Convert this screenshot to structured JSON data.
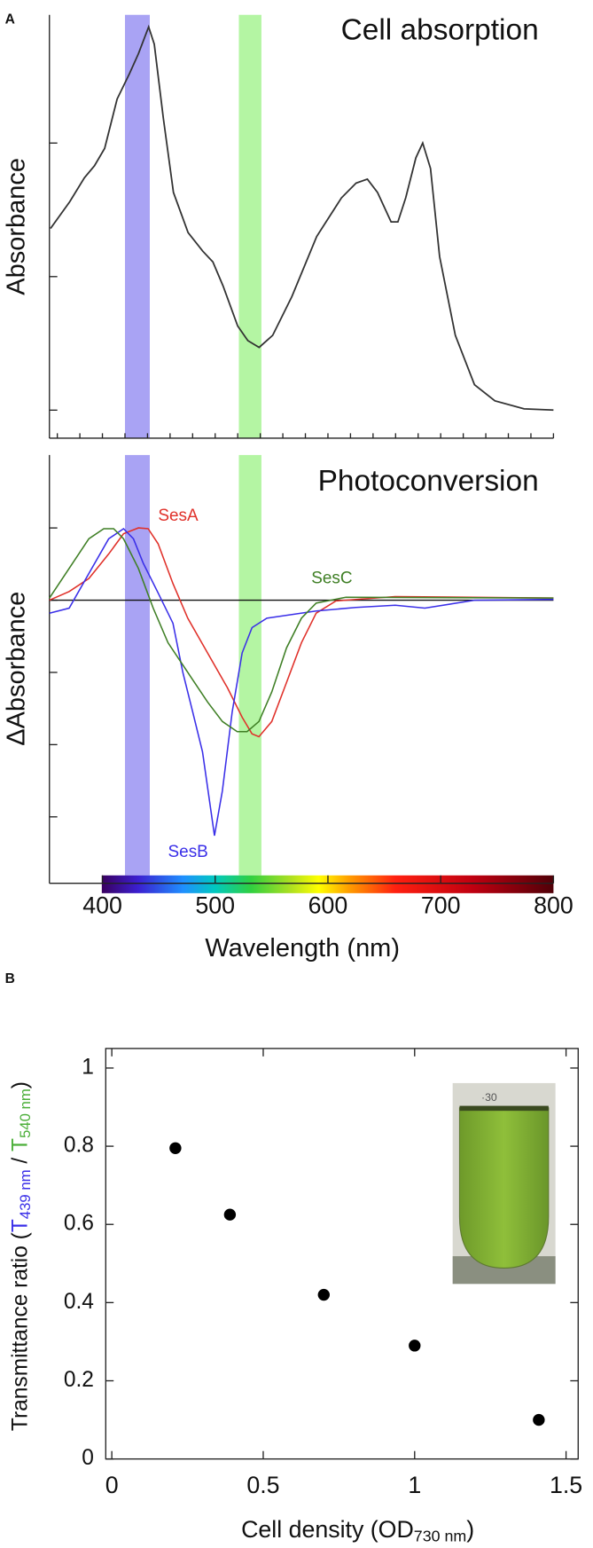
{
  "chart_data": [
    {
      "type": "line",
      "panel_label": "A",
      "title": "Cell absorption",
      "y_label": "Absorbance",
      "color": "#333333",
      "xlim": [
        353,
        800
      ],
      "ylim": [
        -0.21,
        2.96
      ],
      "xticks": [
        360,
        380,
        400,
        420,
        440,
        460,
        480,
        500,
        520,
        540,
        560,
        580,
        600,
        620,
        640,
        660,
        680,
        700,
        720,
        740,
        760,
        780,
        800
      ],
      "yticks": [
        0,
        1,
        2
      ],
      "xtick_labels": false,
      "ytick_labels": false,
      "bands": [
        {
          "range": [
            420,
            442
          ],
          "color": "#a9a3f4"
        },
        {
          "range": [
            521,
            541
          ],
          "color": "#b4f5a3"
        }
      ],
      "x": [
        354,
        371,
        384,
        393,
        402,
        413,
        424,
        432,
        441,
        446,
        454,
        463,
        476,
        489,
        498,
        507,
        520,
        529,
        539,
        551,
        568,
        590,
        612,
        625,
        635,
        644,
        656,
        662,
        669,
        678,
        684,
        691,
        699,
        713,
        730,
        748,
        774,
        800
      ],
      "values": [
        1.36,
        1.56,
        1.74,
        1.83,
        1.96,
        2.33,
        2.52,
        2.67,
        2.87,
        2.74,
        2.19,
        1.63,
        1.33,
        1.19,
        1.11,
        0.93,
        0.63,
        0.52,
        0.47,
        0.56,
        0.85,
        1.3,
        1.59,
        1.7,
        1.73,
        1.63,
        1.41,
        1.41,
        1.59,
        1.89,
        2.0,
        1.81,
        1.15,
        0.56,
        0.19,
        0.07,
        0.01,
        0
      ]
    },
    {
      "type": "line",
      "title": "Photoconversion",
      "y_label": "ΔAbsorbance",
      "x_label": "Wavelength (nm)",
      "xlim": [
        353,
        800
      ],
      "ylim": [
        -3.92,
        2.01
      ],
      "xticks": [
        400,
        500,
        600,
        700,
        800
      ],
      "yticks": [
        -3,
        -2,
        -1,
        0,
        1
      ],
      "xtick_labels": true,
      "ytick_labels": false,
      "reference_line": 0,
      "bands": [
        {
          "range": [
            420,
            442
          ],
          "color": "#a9a3f4"
        },
        {
          "range": [
            521,
            541
          ],
          "color": "#b4f5a3"
        }
      ],
      "series": [
        {
          "name": "SesA",
          "color": "#e0312a",
          "x": [
            353,
            370.5,
            388,
            405.6,
            418.7,
            431.9,
            440.6,
            449.4,
            462.6,
            475.7,
            493.2,
            510.8,
            523.9,
            532.7,
            538.8,
            550.2,
            563.3,
            576.5,
            589.6,
            607.2,
            659.7,
            800
          ],
          "values": [
            0,
            0.12,
            0.3,
            0.64,
            0.92,
            1.0,
            0.99,
            0.78,
            0.23,
            -0.25,
            -0.73,
            -1.21,
            -1.62,
            -1.85,
            -1.89,
            -1.68,
            -1.14,
            -0.59,
            -0.18,
            -0.01,
            0.05,
            0.03
          ]
        },
        {
          "name": "SesB",
          "color": "#3a2fe8",
          "x": [
            353,
            370.5,
            388,
            405.6,
            418.7,
            427.5,
            436.3,
            449.4,
            462.6,
            471.3,
            480.1,
            488.8,
            495,
            499.4,
            506.4,
            515.1,
            523.9,
            532.7,
            545.8,
            563.3,
            589.6,
            624.7,
            659.7,
            686,
            729.9,
            800
          ],
          "values": [
            -0.18,
            -0.11,
            0.37,
            0.85,
            0.99,
            0.85,
            0.51,
            0.1,
            -0.32,
            -1.0,
            -1.55,
            -2.1,
            -2.78,
            -3.26,
            -2.64,
            -1.55,
            -0.73,
            -0.38,
            -0.25,
            -0.21,
            -0.15,
            -0.1,
            -0.07,
            -0.11,
            0,
            0.01
          ]
        },
        {
          "name": "SesC",
          "color": "#3f7f25",
          "x": [
            353,
            370.5,
            388,
            401.2,
            410,
            418.7,
            431.9,
            445,
            458.2,
            475.7,
            493.2,
            506.4,
            519.5,
            528.3,
            538.8,
            550.2,
            563.3,
            576.5,
            589.6,
            615.9,
            800
          ],
          "values": [
            0.03,
            0.44,
            0.85,
            0.99,
            0.99,
            0.85,
            0.44,
            -0.11,
            -0.59,
            -1.0,
            -1.41,
            -1.68,
            -1.82,
            -1.82,
            -1.68,
            -1.27,
            -0.66,
            -0.25,
            -0.04,
            0.04,
            0.03
          ]
        }
      ]
    },
    {
      "type": "scatter",
      "panel_label": "B",
      "frame": true,
      "y_label": [
        "Transmittance ratio (",
        "T",
        "439 nm",
        " / ",
        "T",
        "540 nm",
        ")"
      ],
      "x_label": [
        "Cell density (OD",
        "730 nm",
        ")"
      ],
      "xlim": [
        -0.02,
        1.54
      ],
      "ylim": [
        0,
        1.05
      ],
      "xticks": [
        0,
        0.5,
        1,
        1.5
      ],
      "yticks": [
        0,
        0.2,
        0.4,
        0.6,
        0.8,
        1
      ],
      "xtick_labels": true,
      "ytick_labels": true,
      "color": "#000000",
      "x": [
        0.21,
        0.39,
        0.7,
        1.0,
        1.41
      ],
      "values": [
        0.795,
        0.625,
        0.42,
        0.29,
        0.1
      ]
    }
  ]
}
